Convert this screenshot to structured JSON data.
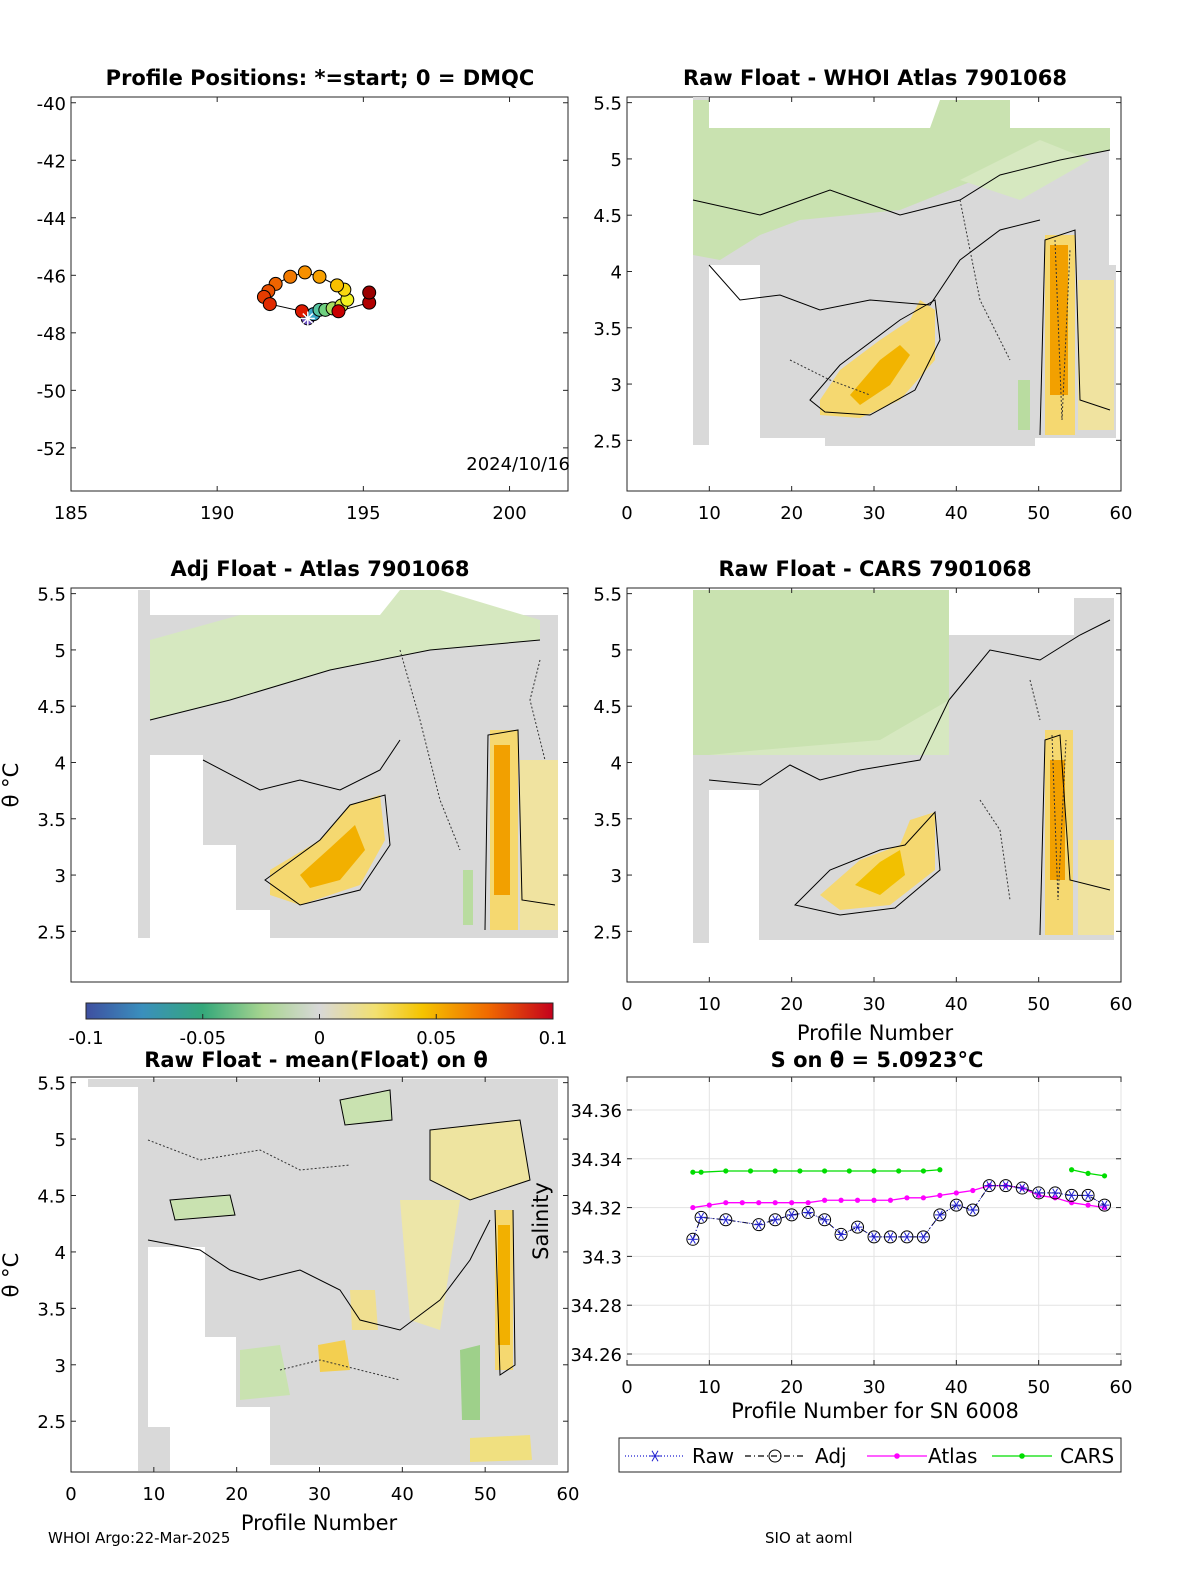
{
  "footer": {
    "left": "WHOI Argo:22-Mar-2025",
    "right": "SIO at aoml"
  },
  "colorbar": {
    "ticks": [
      "-0.1",
      "-0.05",
      "0",
      "0.05",
      "0.1"
    ],
    "range": [
      -0.1,
      0.1
    ]
  },
  "colors": {
    "raw": "#1f1fd0",
    "adj": "#000000",
    "atlas": "#ff00ff",
    "cars": "#00dd00"
  },
  "chart_data": [
    {
      "type": "scatter",
      "title": "Profile Positions: *=start; 0 = DMQC",
      "xlim": [
        185,
        202
      ],
      "ylim": [
        -53.5,
        -39.8
      ],
      "xticks": [
        "185",
        "190",
        "195",
        "200"
      ],
      "yticks": [
        "-40",
        "-42",
        "-44",
        "-46",
        "-48",
        "-50",
        "-52"
      ],
      "annotation": "2024/10/16",
      "track": [
        {
          "x": 193.1,
          "y": -47.5,
          "color": "#6a4ec0"
        },
        {
          "x": 193.3,
          "y": -47.35,
          "color": "#3aa6c8"
        },
        {
          "x": 193.5,
          "y": -47.2,
          "color": "#55c4a0"
        },
        {
          "x": 193.7,
          "y": -47.2,
          "color": "#6fd080"
        },
        {
          "x": 193.95,
          "y": -47.15,
          "color": "#a8dd60"
        },
        {
          "x": 194.25,
          "y": -47.05,
          "color": "#d6e63a"
        },
        {
          "x": 194.45,
          "y": -46.85,
          "color": "#f2f020"
        },
        {
          "x": 194.35,
          "y": -46.5,
          "color": "#f8d810"
        },
        {
          "x": 194.1,
          "y": -46.35,
          "color": "#f8c000"
        },
        {
          "x": 193.5,
          "y": -46.05,
          "color": "#f7a000"
        },
        {
          "x": 193.0,
          "y": -45.9,
          "color": "#f79000"
        },
        {
          "x": 192.5,
          "y": -46.05,
          "color": "#f27a00"
        },
        {
          "x": 192.0,
          "y": -46.3,
          "color": "#ee6400"
        },
        {
          "x": 191.75,
          "y": -46.55,
          "color": "#ea5000"
        },
        {
          "x": 191.6,
          "y": -46.75,
          "color": "#e43c00"
        },
        {
          "x": 191.8,
          "y": -47.0,
          "color": "#e02a00"
        },
        {
          "x": 192.9,
          "y": -47.25,
          "color": "#dc1a00"
        },
        {
          "x": 194.15,
          "y": -47.25,
          "color": "#c80000"
        },
        {
          "x": 195.2,
          "y": -46.95,
          "color": "#b00000"
        },
        {
          "x": 195.2,
          "y": -46.6,
          "color": "#9a0000"
        }
      ],
      "start": {
        "x": 193.1,
        "y": -47.5
      }
    },
    {
      "type": "heatmap",
      "title": "Raw Float - WHOI Atlas  7901068",
      "xlim": [
        0,
        60
      ],
      "ylim": [
        2.05,
        5.55
      ],
      "xticks": [
        "0",
        "10",
        "20",
        "30",
        "40",
        "50",
        "60"
      ],
      "yticks": [
        "2.5",
        "3",
        "3.5",
        "4",
        "4.5",
        "5",
        "5.5"
      ],
      "xlabel": "",
      "ylabel": ""
    },
    {
      "type": "heatmap",
      "title": "Adj Float - Atlas  7901068",
      "xlim": [
        0,
        60
      ],
      "ylim": [
        2.05,
        5.55
      ],
      "xticks": [],
      "yticks": [
        "2.5",
        "3",
        "3.5",
        "4",
        "4.5",
        "5",
        "5.5"
      ],
      "xlabel": "",
      "ylabel": "θ °C"
    },
    {
      "type": "heatmap",
      "title": "Raw Float - CARS  7901068",
      "xlim": [
        0,
        60
      ],
      "ylim": [
        2.05,
        5.55
      ],
      "xticks": [
        "0",
        "10",
        "20",
        "30",
        "40",
        "50",
        "60"
      ],
      "yticks": [
        "2.5",
        "3",
        "3.5",
        "4",
        "4.5",
        "5",
        "5.5"
      ],
      "xlabel": "Profile Number",
      "ylabel": ""
    },
    {
      "type": "heatmap",
      "title": "Raw Float - mean(Float) on θ",
      "xlim": [
        0,
        60
      ],
      "ylim": [
        2.05,
        5.55
      ],
      "xticks": [
        "0",
        "10",
        "20",
        "30",
        "40",
        "50",
        "60"
      ],
      "yticks": [
        "2.5",
        "3",
        "3.5",
        "4",
        "4.5",
        "5",
        "5.5"
      ],
      "xlabel": "Profile Number",
      "ylabel": "θ °C"
    },
    {
      "type": "line",
      "title": "S on θ = 5.0923°C",
      "xlabel": "Profile Number for SN 6008",
      "ylabel": "Salinity",
      "xlim": [
        0,
        60
      ],
      "ylim": [
        34.2555,
        34.3735
      ],
      "xticks": [
        "0",
        "10",
        "20",
        "30",
        "40",
        "50",
        "60"
      ],
      "yticks": [
        "34.26",
        "34.28",
        "34.3",
        "34.32",
        "34.34",
        "34.36"
      ],
      "grid": true,
      "legend": [
        "Raw",
        "Adj",
        "Atlas",
        "CARS"
      ],
      "legend_position": "below",
      "series": [
        {
          "name": "Raw",
          "x": [
            8,
            9,
            12,
            16,
            18,
            20,
            22,
            24,
            26,
            28,
            30,
            32,
            34,
            36,
            38,
            40,
            42,
            44,
            46,
            48,
            50,
            52,
            54,
            56,
            58
          ],
          "y": [
            34.307,
            34.316,
            34.315,
            34.313,
            34.315,
            34.317,
            34.318,
            34.315,
            34.309,
            34.312,
            34.308,
            34.308,
            34.308,
            34.308,
            34.317,
            34.321,
            34.319,
            34.329,
            34.329,
            34.328,
            34.326,
            34.326,
            34.325,
            34.325,
            34.321
          ]
        },
        {
          "name": "Adj",
          "x": [
            8,
            9,
            12,
            16,
            18,
            20,
            22,
            24,
            26,
            28,
            30,
            32,
            34,
            36,
            38,
            40,
            42,
            44,
            46,
            48,
            50,
            52,
            54,
            56,
            58
          ],
          "y": [
            34.307,
            34.316,
            34.315,
            34.313,
            34.315,
            34.317,
            34.318,
            34.315,
            34.309,
            34.312,
            34.308,
            34.308,
            34.308,
            34.308,
            34.317,
            34.321,
            34.319,
            34.329,
            34.329,
            34.328,
            34.326,
            34.326,
            34.325,
            34.325,
            34.321
          ]
        },
        {
          "name": "Atlas",
          "x": [
            8,
            10,
            12,
            14,
            16,
            18,
            20,
            22,
            24,
            26,
            28,
            30,
            32,
            34,
            36,
            38,
            40,
            42,
            44,
            46,
            48,
            50,
            52,
            54,
            56,
            58
          ],
          "y": [
            34.32,
            34.321,
            34.322,
            34.322,
            34.322,
            34.322,
            34.322,
            34.322,
            34.323,
            34.323,
            34.323,
            34.323,
            34.323,
            34.324,
            34.324,
            34.325,
            34.326,
            34.327,
            34.329,
            34.329,
            34.328,
            34.325,
            34.324,
            34.322,
            34.321,
            34.32
          ]
        },
        {
          "name": "CARS",
          "segments": [
            {
              "x": [
                8,
                9,
                12,
                15,
                18,
                21,
                24,
                27,
                30,
                33,
                36,
                38
              ],
              "y": [
                34.3345,
                34.3345,
                34.335,
                34.335,
                34.335,
                34.335,
                34.335,
                34.335,
                34.335,
                34.335,
                34.335,
                34.3355
              ]
            },
            {
              "x": [
                54,
                56,
                58
              ],
              "y": [
                34.3355,
                34.334,
                34.333
              ]
            }
          ]
        }
      ]
    }
  ]
}
